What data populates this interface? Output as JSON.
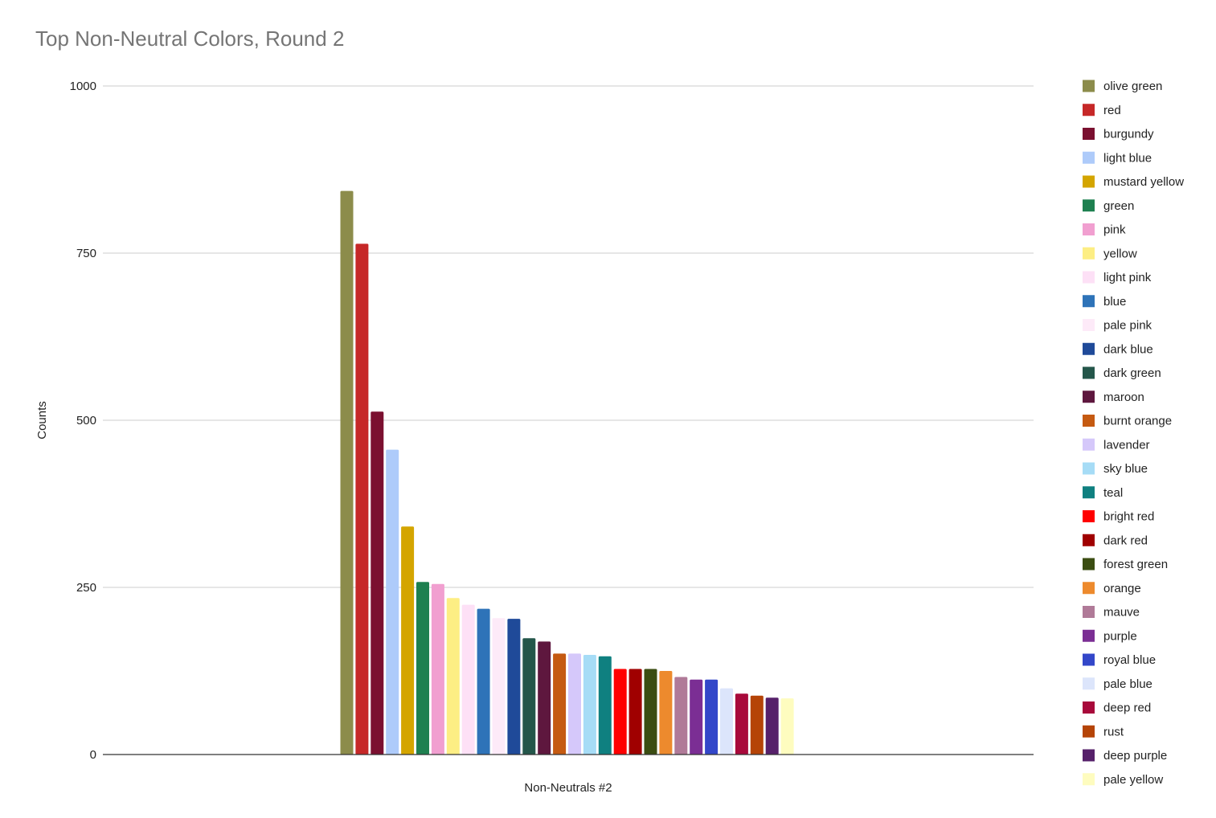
{
  "chart_data": {
    "type": "bar",
    "title": "Top Non-Neutral Colors, Round 2",
    "xlabel": "Non-Neutrals #2",
    "ylabel": "Counts",
    "categories": [
      "Non-Neutrals #2"
    ],
    "ylim": [
      0,
      1000
    ],
    "yticks": [
      "0",
      "250",
      "500",
      "750",
      "1000"
    ],
    "grid": true,
    "legend_position": "right",
    "series": [
      {
        "name": "olive green",
        "color": "#8c8c4b",
        "values": [
          843
        ]
      },
      {
        "name": "red",
        "color": "#c62828",
        "values": [
          764
        ]
      },
      {
        "name": "burgundy",
        "color": "#7b1030",
        "values": [
          513
        ]
      },
      {
        "name": "light blue",
        "color": "#aecbfa",
        "values": [
          456
        ]
      },
      {
        "name": "mustard yellow",
        "color": "#d4a500",
        "values": [
          341
        ]
      },
      {
        "name": "green",
        "color": "#1e8050",
        "values": [
          258
        ]
      },
      {
        "name": "pink",
        "color": "#f19fd0",
        "values": [
          255
        ]
      },
      {
        "name": "yellow",
        "color": "#fdee84",
        "values": [
          234
        ]
      },
      {
        "name": "light pink",
        "color": "#fde0f6",
        "values": [
          224
        ]
      },
      {
        "name": "blue",
        "color": "#2e73b8",
        "values": [
          218
        ]
      },
      {
        "name": "pale pink",
        "color": "#fdeaf8",
        "values": [
          204
        ]
      },
      {
        "name": "dark blue",
        "color": "#1f4a99",
        "values": [
          203
        ]
      },
      {
        "name": "dark green",
        "color": "#24564a",
        "values": [
          174
        ]
      },
      {
        "name": "maroon",
        "color": "#5e173e",
        "values": [
          169
        ]
      },
      {
        "name": "burnt orange",
        "color": "#c55a11",
        "values": [
          151
        ]
      },
      {
        "name": "lavender",
        "color": "#d5c8fa",
        "values": [
          151
        ]
      },
      {
        "name": "sky blue",
        "color": "#a6dcf6",
        "values": [
          149
        ]
      },
      {
        "name": "teal",
        "color": "#0f8080",
        "values": [
          147
        ]
      },
      {
        "name": "bright red",
        "color": "#ff0000",
        "values": [
          128
        ]
      },
      {
        "name": "dark red",
        "color": "#a00000",
        "values": [
          128
        ]
      },
      {
        "name": "forest green",
        "color": "#3b4d12",
        "values": [
          128
        ]
      },
      {
        "name": "orange",
        "color": "#ed8a2d",
        "values": [
          125
        ]
      },
      {
        "name": "mauve",
        "color": "#b07a98",
        "values": [
          116
        ]
      },
      {
        "name": "purple",
        "color": "#7b2e94",
        "values": [
          112
        ]
      },
      {
        "name": "royal blue",
        "color": "#3347c9",
        "values": [
          112
        ]
      },
      {
        "name": "pale blue",
        "color": "#dce5fb",
        "values": [
          99
        ]
      },
      {
        "name": "deep red",
        "color": "#a8093b",
        "values": [
          91
        ]
      },
      {
        "name": "rust",
        "color": "#b54407",
        "values": [
          88
        ]
      },
      {
        "name": "deep purple",
        "color": "#56206a",
        "values": [
          85
        ]
      },
      {
        "name": "pale yellow",
        "color": "#fefcbf",
        "values": [
          84
        ]
      }
    ]
  }
}
